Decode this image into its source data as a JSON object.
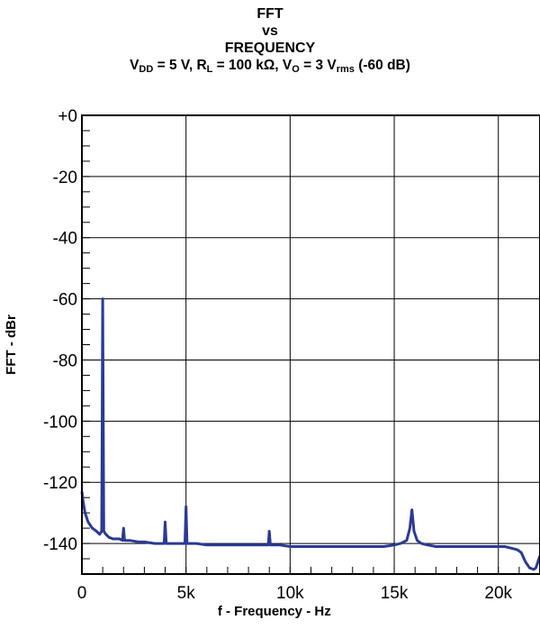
{
  "title": {
    "line1": "FFT",
    "line2": "vs",
    "line3": "FREQUENCY",
    "conditions": {
      "vdd_main": "V",
      "vdd_sub": "DD",
      "vdd_value": " = 5 V, ",
      "rl_main": "R",
      "rl_sub": "L",
      "rl_value": " = 100 kΩ, ",
      "vo_main": "V",
      "vo_sub": "O",
      "vo_value": " = 3 V",
      "vrms_sub": "rms",
      "tail": " (-60 dB)"
    }
  },
  "chart_data": {
    "type": "line",
    "xlabel": "f - Frequency - Hz",
    "ylabel": "FFT - dBr",
    "xlim": [
      0,
      22000
    ],
    "ylim": [
      -150,
      0
    ],
    "x_ticks": [
      {
        "value": 0,
        "label": "0"
      },
      {
        "value": 5000,
        "label": "5k"
      },
      {
        "value": 10000,
        "label": "10k"
      },
      {
        "value": 15000,
        "label": "15k"
      },
      {
        "value": 20000,
        "label": "20k"
      }
    ],
    "y_ticks": [
      {
        "value": 0,
        "label": "+0"
      },
      {
        "value": -20,
        "label": "-20"
      },
      {
        "value": -40,
        "label": "-40"
      },
      {
        "value": -60,
        "label": "-60"
      },
      {
        "value": -80,
        "label": "-80"
      },
      {
        "value": -100,
        "label": "-100"
      },
      {
        "value": -120,
        "label": "-120"
      },
      {
        "value": -140,
        "label": "-140"
      }
    ],
    "grid": true,
    "line_color": "#2b3a93",
    "series": [
      {
        "x": [
          0,
          50,
          150,
          300,
          500,
          700,
          850,
          950,
          1000,
          1050,
          1150,
          1300,
          1500,
          1800,
          1950,
          2000,
          2050,
          2300,
          2700,
          3000,
          3500,
          3950,
          4000,
          4050,
          4500,
          4950,
          5000,
          5050,
          5500,
          6000,
          6500,
          7000,
          7500,
          8000,
          8500,
          8950,
          9000,
          9050,
          9500,
          10000,
          10500,
          11000,
          11500,
          12000,
          12500,
          13000,
          13500,
          14000,
          14500,
          15000,
          15300,
          15600,
          15750,
          15850,
          15950,
          16100,
          16300,
          16600,
          17000,
          17500,
          18000,
          18500,
          19000,
          19500,
          20000,
          20300,
          20600,
          20900,
          21100,
          21300,
          21500,
          21700,
          21800,
          21900,
          22000
        ],
        "y": [
          -123,
          -126,
          -130,
          -133,
          -135,
          -136,
          -137,
          -136,
          -60,
          -136,
          -137,
          -138,
          -138.5,
          -138.5,
          -139,
          -135,
          -139,
          -139,
          -139.5,
          -139.5,
          -140,
          -140,
          -133,
          -140,
          -140,
          -140,
          -128,
          -140,
          -140,
          -140.5,
          -140.5,
          -140.5,
          -140.5,
          -140.5,
          -140.5,
          -140.5,
          -136,
          -140.5,
          -140.5,
          -141,
          -141,
          -141,
          -141,
          -141,
          -141,
          -141,
          -141,
          -141,
          -141,
          -140.5,
          -140,
          -139,
          -135,
          -129,
          -136,
          -139,
          -140,
          -140.5,
          -141,
          -141,
          -141,
          -141,
          -141,
          -141,
          -141,
          -141,
          -141.5,
          -142,
          -143,
          -146,
          -148,
          -148.5,
          -148,
          -146,
          -144
        ]
      }
    ]
  }
}
